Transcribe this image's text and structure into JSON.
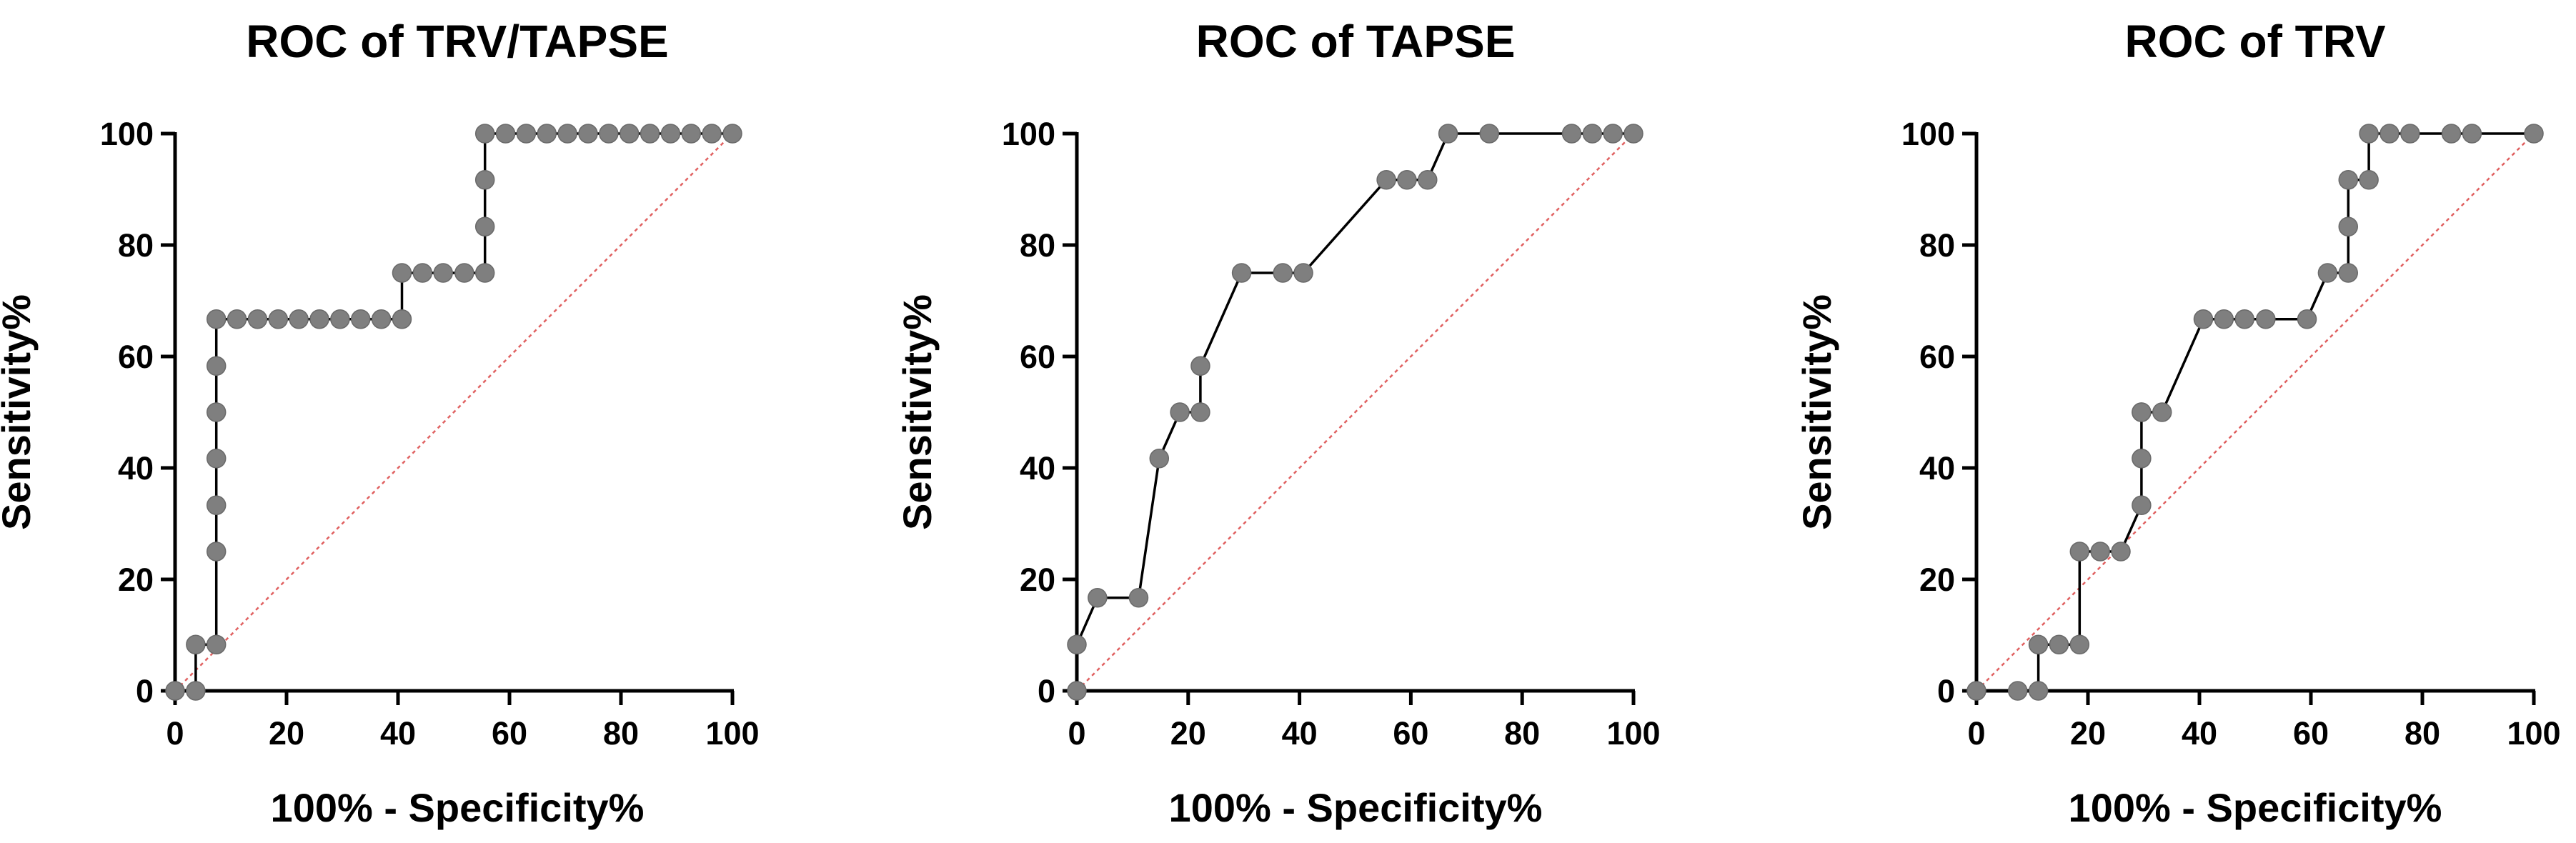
{
  "chart_data": [
    {
      "type": "line",
      "title": "ROC of TRV/TAPSE",
      "xlabel": "100% - Specificity%",
      "ylabel": "Sensitivity%",
      "xlim": [
        0,
        100
      ],
      "ylim": [
        0,
        100
      ],
      "xticks": [
        0,
        20,
        40,
        60,
        80,
        100
      ],
      "yticks": [
        0,
        20,
        40,
        60,
        80,
        100
      ],
      "x_tick_labels": [
        "0",
        "20",
        "40",
        "60",
        "80",
        "100"
      ],
      "y_tick_labels": [
        "0",
        "20",
        "40",
        "60",
        "80",
        "100"
      ],
      "reference_line": [
        [
          0,
          0
        ],
        [
          100,
          100
        ]
      ],
      "colors": {
        "line": "#000000",
        "marker": "#7f7f7f",
        "reference": "#e06060"
      },
      "x": [
        0,
        3.7,
        3.7,
        7.4,
        7.4,
        7.4,
        7.4,
        7.4,
        7.4,
        7.4,
        11.1,
        14.8,
        18.5,
        22.2,
        25.9,
        29.6,
        33.3,
        37.0,
        40.7,
        40.7,
        44.4,
        48.1,
        51.9,
        55.6,
        55.6,
        55.6,
        55.6,
        59.3,
        63.0,
        66.7,
        70.4,
        74.1,
        77.8,
        81.5,
        85.2,
        88.9,
        92.6,
        96.3,
        100
      ],
      "y": [
        0,
        0,
        8.3,
        8.3,
        25,
        33.3,
        41.7,
        50,
        58.3,
        66.7,
        66.7,
        66.7,
        66.7,
        66.7,
        66.7,
        66.7,
        66.7,
        66.7,
        66.7,
        75,
        75,
        75,
        75,
        75,
        83.3,
        91.7,
        100,
        100,
        100,
        100,
        100,
        100,
        100,
        100,
        100,
        100,
        100,
        100,
        100
      ]
    },
    {
      "type": "line",
      "title": "ROC of TAPSE",
      "xlabel": "100% - Specificity%",
      "ylabel": "Sensitivity%",
      "xlim": [
        0,
        100
      ],
      "ylim": [
        0,
        100
      ],
      "xticks": [
        0,
        20,
        40,
        60,
        80,
        100
      ],
      "yticks": [
        0,
        20,
        40,
        60,
        80,
        100
      ],
      "x_tick_labels": [
        "0",
        "20",
        "40",
        "60",
        "80",
        "100"
      ],
      "y_tick_labels": [
        "0",
        "20",
        "40",
        "60",
        "80",
        "100"
      ],
      "reference_line": [
        [
          0,
          0
        ],
        [
          100,
          100
        ]
      ],
      "colors": {
        "line": "#000000",
        "marker": "#7f7f7f",
        "reference": "#e06060"
      },
      "x": [
        0,
        0,
        3.7,
        11.1,
        14.8,
        18.5,
        22.2,
        22.2,
        29.6,
        37.0,
        40.7,
        55.6,
        59.3,
        63.0,
        66.7,
        74.1,
        88.9,
        92.6,
        96.3,
        100
      ],
      "y": [
        0,
        8.3,
        16.7,
        16.7,
        41.7,
        50,
        50,
        58.3,
        75,
        75,
        75,
        91.7,
        91.7,
        91.7,
        100,
        100,
        100,
        100,
        100,
        100
      ]
    },
    {
      "type": "line",
      "title": "ROC of TRV",
      "xlabel": "100% - Specificity%",
      "ylabel": "Sensitivity%",
      "xlim": [
        0,
        100
      ],
      "ylim": [
        0,
        100
      ],
      "xticks": [
        0,
        20,
        40,
        60,
        80,
        100
      ],
      "yticks": [
        0,
        20,
        40,
        60,
        80,
        100
      ],
      "x_tick_labels": [
        "0",
        "20",
        "40",
        "60",
        "80",
        "100"
      ],
      "y_tick_labels": [
        "0",
        "20",
        "40",
        "60",
        "80",
        "100"
      ],
      "reference_line": [
        [
          0,
          0
        ],
        [
          100,
          100
        ]
      ],
      "colors": {
        "line": "#000000",
        "marker": "#7f7f7f",
        "reference": "#e06060"
      },
      "x": [
        0,
        7.4,
        11.1,
        11.1,
        14.8,
        18.5,
        18.5,
        22.2,
        25.9,
        29.6,
        29.6,
        29.6,
        29.6,
        33.3,
        40.7,
        44.4,
        48.1,
        51.9,
        59.3,
        63.0,
        66.7,
        66.7,
        66.7,
        70.4,
        70.4,
        74.1,
        77.8,
        85.2,
        88.9,
        100
      ],
      "y": [
        0,
        0,
        0,
        8.3,
        8.3,
        8.3,
        25,
        25,
        25,
        33.3,
        41.7,
        50,
        50,
        50,
        66.7,
        66.7,
        66.7,
        66.7,
        66.7,
        75,
        75,
        83.3,
        91.7,
        91.7,
        100,
        100,
        100,
        100,
        100,
        100
      ]
    }
  ]
}
